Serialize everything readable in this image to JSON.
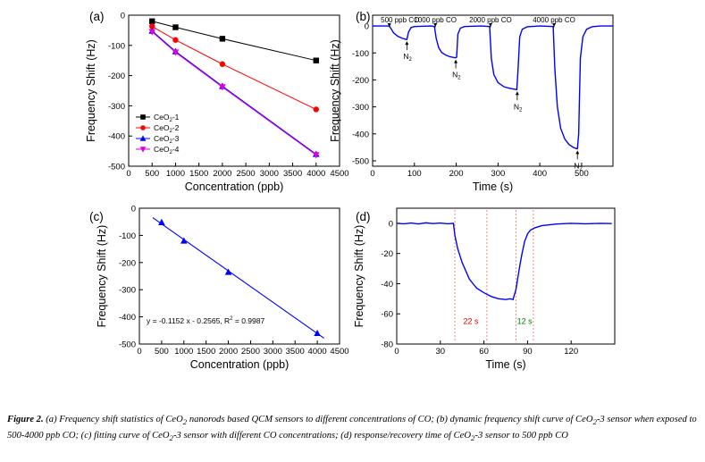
{
  "chart_data": [
    {
      "id": "a",
      "panel_label": "(a)",
      "type": "line",
      "xlabel": "Concentration (ppb)",
      "ylabel": "Frequency Shift (Hz)",
      "xlim": [
        0,
        4500
      ],
      "ylim": [
        -500,
        0
      ],
      "xticks": [
        0,
        500,
        1000,
        1500,
        2000,
        2500,
        3000,
        3500,
        4000,
        4500
      ],
      "yticks": [
        0,
        -100,
        -200,
        -300,
        -400,
        -500
      ],
      "legend_position": "bottom-left",
      "series": [
        {
          "name": "CeO2-1",
          "legend_main": "CeO",
          "legend_sub": "2",
          "legend_tail": "-1",
          "color": "#000000",
          "marker": "square",
          "x": [
            500,
            1000,
            2000,
            4000
          ],
          "y": [
            -20,
            -40,
            -78,
            -150
          ]
        },
        {
          "name": "CeO2-2",
          "legend_main": "CeO",
          "legend_sub": "2",
          "legend_tail": "-2",
          "color": "#ff0000",
          "marker": "circle",
          "x": [
            500,
            1000,
            2000,
            4000
          ],
          "y": [
            -37,
            -82,
            -162,
            -312
          ]
        },
        {
          "name": "CeO2-3",
          "legend_main": "CeO",
          "legend_sub": "2",
          "legend_tail": "-3",
          "color": "#0000ff",
          "marker": "triangle-up",
          "x": [
            500,
            1000,
            2000,
            4000
          ],
          "y": [
            -52,
            -120,
            -235,
            -460
          ]
        },
        {
          "name": "CeO2-4",
          "legend_main": "CeO",
          "legend_sub": "2",
          "legend_tail": "-4",
          "color": "#e000e0",
          "marker": "triangle-down",
          "x": [
            500,
            1000,
            2000,
            4000
          ],
          "y": [
            -55,
            -123,
            -238,
            -463
          ]
        }
      ]
    },
    {
      "id": "b",
      "panel_label": "(b)",
      "type": "line",
      "xlabel": "Time (s)",
      "ylabel": "Frequency Shift (Hz)",
      "xlim": [
        0,
        575
      ],
      "ylim": [
        -520,
        40
      ],
      "xticks": [
        0,
        100,
        200,
        300,
        400,
        500
      ],
      "yticks": [
        0,
        -100,
        -200,
        -300,
        -400,
        -500
      ],
      "series": [
        {
          "name": "",
          "color": "#0000ff",
          "x": [
            0,
            40,
            45,
            50,
            60,
            70,
            80,
            82,
            86,
            92,
            100,
            140,
            148,
            152,
            158,
            165,
            175,
            185,
            198,
            201,
            204,
            210,
            220,
            260,
            280,
            284,
            290,
            300,
            315,
            330,
            345,
            348,
            352,
            358,
            370,
            400,
            432,
            436,
            442,
            450,
            460,
            470,
            480,
            488,
            490,
            493,
            497,
            503,
            512,
            525,
            545,
            575
          ],
          "y": [
            0,
            0,
            -12,
            -25,
            -38,
            -45,
            -50,
            -50,
            -22,
            -6,
            -2,
            0,
            -2,
            -45,
            -80,
            -98,
            -108,
            -114,
            -118,
            -116,
            -30,
            -8,
            -2,
            0,
            -2,
            -120,
            -180,
            -210,
            -226,
            -232,
            -236,
            -160,
            -40,
            -12,
            -3,
            0,
            -2,
            -160,
            -300,
            -380,
            -420,
            -440,
            -450,
            -455,
            -455,
            -400,
            -120,
            -40,
            -12,
            -3,
            0,
            0
          ]
        }
      ],
      "annotations": [
        {
          "text": "500 ppb CO",
          "x": 40
        },
        {
          "text": "1000 ppb CO",
          "x": 150
        },
        {
          "text": "2000 ppb CO",
          "x": 282
        },
        {
          "text": "4000 ppb CO",
          "x": 434
        }
      ],
      "n2_labels": [
        {
          "main": "N",
          "sub": "2",
          "x": 82,
          "y": -50
        },
        {
          "main": "N",
          "sub": "2",
          "x": 199,
          "y": -118
        },
        {
          "main": "N",
          "sub": "2",
          "x": 346,
          "y": -236
        },
        {
          "main": "N",
          "sub": "2",
          "x": 490,
          "y": -455
        }
      ]
    },
    {
      "id": "c",
      "panel_label": "(c)",
      "type": "scatter",
      "xlabel": "Concentration (ppb)",
      "ylabel": "Frequency Shift (Hz)",
      "xlim": [
        0,
        4500
      ],
      "ylim": [
        -500,
        0
      ],
      "xticks": [
        0,
        500,
        1000,
        1500,
        2000,
        2500,
        3000,
        3500,
        4000,
        4500
      ],
      "yticks": [
        0,
        -100,
        -200,
        -300,
        -400,
        -500
      ],
      "series": [
        {
          "name": "",
          "color": "#0000ff",
          "marker": "triangle-up",
          "x": [
            500,
            1000,
            2000,
            4000
          ],
          "y": [
            -52,
            -120,
            -235,
            -460
          ]
        }
      ],
      "fit": {
        "x": [
          300,
          4150
        ],
        "slope": -0.1152,
        "intercept": -0.2565,
        "color": "#0000ff"
      },
      "equation": "y = -0.1152 x - 0.2565, R",
      "equation_sup": "2",
      "equation_tail": " = 0.9987"
    },
    {
      "id": "d",
      "panel_label": "(d)",
      "type": "line",
      "xlabel": "Time (s)",
      "ylabel": "Frequency Shift (Hz)",
      "xlim": [
        0,
        150
      ],
      "ylim": [
        -80,
        10
      ],
      "xticks": [
        0,
        30,
        60,
        90,
        120
      ],
      "yticks": [
        0,
        -20,
        -40,
        -60,
        -80
      ],
      "series": [
        {
          "name": "",
          "color": "#0000ff",
          "x": [
            0,
            5,
            10,
            15,
            20,
            25,
            30,
            35,
            39,
            40,
            42,
            45,
            50,
            55,
            60,
            65,
            70,
            75,
            78,
            80,
            82,
            84,
            86,
            88,
            90,
            92,
            95,
            100,
            110,
            120,
            130,
            140,
            148
          ],
          "y": [
            0,
            -0.3,
            0.2,
            -0.4,
            0.3,
            -0.2,
            0.2,
            -0.3,
            0,
            -8,
            -17,
            -26,
            -37,
            -43,
            -46,
            -48.5,
            -50,
            -50.5,
            -50,
            -50.5,
            -44,
            -32,
            -21,
            -12,
            -7,
            -4.5,
            -3,
            -1.5,
            -0.5,
            0,
            -0.3,
            0,
            -0.2
          ]
        }
      ],
      "markers": [
        {
          "x": 40,
          "color": "#ff6666"
        },
        {
          "x": 62,
          "color": "#ff6666"
        },
        {
          "x": 82,
          "color": "#ff6666"
        },
        {
          "x": 94,
          "color": "#ff6666"
        }
      ],
      "labels": [
        {
          "text": "22 s",
          "color": "#e00000",
          "x": 51,
          "y": -65
        },
        {
          "text": "12 s",
          "color": "#008000",
          "x": 88,
          "y": -65
        }
      ]
    }
  ],
  "caption": {
    "prefix": "Figure 2.",
    "t1": " (a) Frequency shift statistics of CeO",
    "s1": "2",
    "t2": " nanorods based QCM sensors to different concentrations of CO; (b) dynamic frequency shift curve of CeO",
    "s2": "2",
    "t3": "-3 sensor when exposed to 500-4000 ppb CO; (c) fitting curve of CeO",
    "s3": "2",
    "t4": "-3 sensor with different CO concentrations; (d) response/recovery time of CeO",
    "s4": "2",
    "t5": "-3 sensor to 500 ppb CO"
  }
}
